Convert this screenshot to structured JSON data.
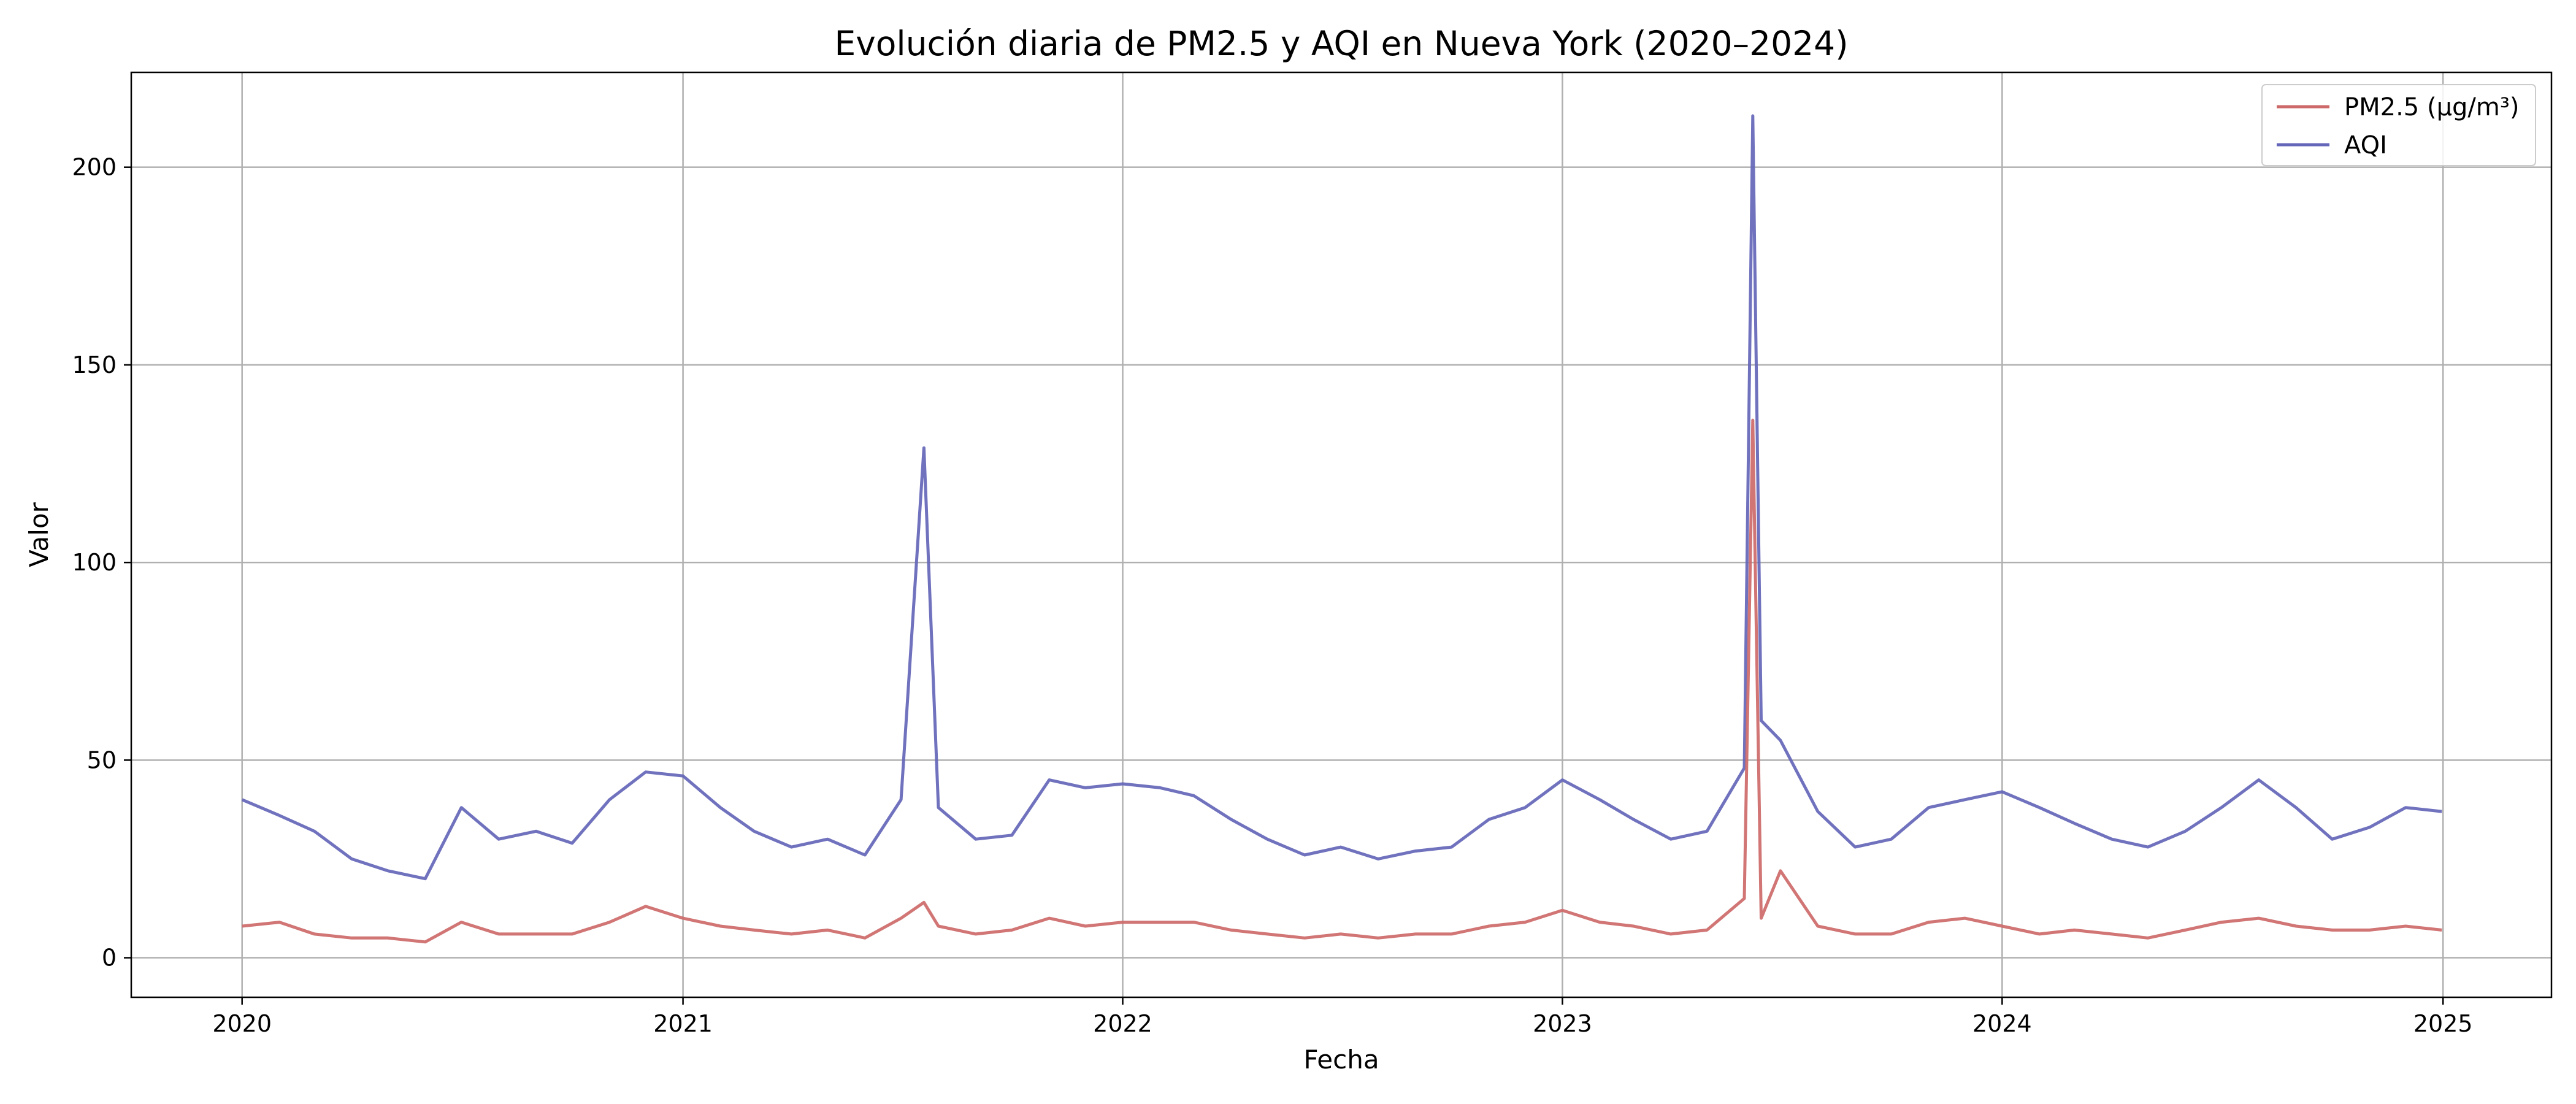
{
  "chart_data": {
    "type": "line",
    "title": "Evolución diaria de PM2.5 y AQI en Nueva York (2020–2024)",
    "xlabel": "Fecha",
    "ylabel": "Valor",
    "x_ticks": [
      "2020",
      "2021",
      "2022",
      "2023",
      "2024",
      "2025"
    ],
    "y_ticks": [
      0,
      50,
      100,
      150,
      200
    ],
    "xlim": [
      "2019-10-01",
      "2025-04-01"
    ],
    "ylim": [
      -10,
      224
    ],
    "grid": true,
    "legend_position": "top-right",
    "series": [
      {
        "name": "PM2.5 (µg/m³)",
        "color": "#cd6969",
        "x": [
          "2020-01-01",
          "2020-02-01",
          "2020-03-01",
          "2020-04-01",
          "2020-05-01",
          "2020-06-01",
          "2020-07-01",
          "2020-08-01",
          "2020-09-01",
          "2020-10-01",
          "2020-11-01",
          "2020-12-01",
          "2021-01-01",
          "2021-02-01",
          "2021-03-01",
          "2021-04-01",
          "2021-05-01",
          "2021-06-01",
          "2021-07-01",
          "2021-07-20",
          "2021-08-01",
          "2021-09-01",
          "2021-10-01",
          "2021-11-01",
          "2021-12-01",
          "2022-01-01",
          "2022-02-01",
          "2022-03-01",
          "2022-04-01",
          "2022-05-01",
          "2022-06-01",
          "2022-07-01",
          "2022-08-01",
          "2022-09-01",
          "2022-10-01",
          "2022-11-01",
          "2022-12-01",
          "2023-01-01",
          "2023-02-01",
          "2023-03-01",
          "2023-04-01",
          "2023-05-01",
          "2023-06-01",
          "2023-06-08",
          "2023-06-15",
          "2023-07-01",
          "2023-08-01",
          "2023-09-01",
          "2023-10-01",
          "2023-11-01",
          "2023-12-01",
          "2024-01-01",
          "2024-02-01",
          "2024-03-01",
          "2024-04-01",
          "2024-05-01",
          "2024-06-01",
          "2024-07-01",
          "2024-08-01",
          "2024-09-01",
          "2024-10-01",
          "2024-11-01",
          "2024-12-01",
          "2024-12-31"
        ],
        "y": [
          8,
          9,
          6,
          5,
          5,
          4,
          9,
          6,
          6,
          6,
          9,
          13,
          10,
          8,
          7,
          6,
          7,
          5,
          10,
          14,
          8,
          6,
          7,
          10,
          8,
          9,
          9,
          9,
          7,
          6,
          5,
          6,
          5,
          6,
          6,
          8,
          9,
          12,
          9,
          8,
          6,
          7,
          15,
          136,
          10,
          22,
          8,
          6,
          6,
          9,
          10,
          8,
          6,
          7,
          6,
          5,
          7,
          9,
          10,
          8,
          7,
          7,
          8,
          7
        ]
      },
      {
        "name": "AQI",
        "color": "#6466b9",
        "x": [
          "2020-01-01",
          "2020-02-01",
          "2020-03-01",
          "2020-04-01",
          "2020-05-01",
          "2020-06-01",
          "2020-07-01",
          "2020-08-01",
          "2020-09-01",
          "2020-10-01",
          "2020-11-01",
          "2020-12-01",
          "2021-01-01",
          "2021-02-01",
          "2021-03-01",
          "2021-04-01",
          "2021-05-01",
          "2021-06-01",
          "2021-07-01",
          "2021-07-20",
          "2021-08-01",
          "2021-09-01",
          "2021-10-01",
          "2021-11-01",
          "2021-12-01",
          "2022-01-01",
          "2022-02-01",
          "2022-03-01",
          "2022-04-01",
          "2022-05-01",
          "2022-06-01",
          "2022-07-01",
          "2022-08-01",
          "2022-09-01",
          "2022-10-01",
          "2022-11-01",
          "2022-12-01",
          "2023-01-01",
          "2023-02-01",
          "2023-03-01",
          "2023-04-01",
          "2023-05-01",
          "2023-06-01",
          "2023-06-08",
          "2023-06-15",
          "2023-07-01",
          "2023-08-01",
          "2023-09-01",
          "2023-10-01",
          "2023-11-01",
          "2023-12-01",
          "2024-01-01",
          "2024-02-01",
          "2024-03-01",
          "2024-04-01",
          "2024-05-01",
          "2024-06-01",
          "2024-07-01",
          "2024-08-01",
          "2024-09-01",
          "2024-10-01",
          "2024-11-01",
          "2024-12-01",
          "2024-12-31"
        ],
        "y": [
          40,
          36,
          32,
          25,
          22,
          20,
          38,
          30,
          32,
          29,
          40,
          47,
          46,
          38,
          32,
          28,
          30,
          26,
          40,
          129,
          38,
          30,
          31,
          45,
          43,
          44,
          43,
          41,
          35,
          30,
          26,
          28,
          25,
          27,
          28,
          35,
          38,
          45,
          40,
          35,
          30,
          32,
          48,
          213,
          60,
          55,
          37,
          28,
          30,
          38,
          40,
          42,
          38,
          34,
          30,
          28,
          32,
          38,
          45,
          38,
          30,
          33,
          38,
          37
        ]
      }
    ]
  }
}
